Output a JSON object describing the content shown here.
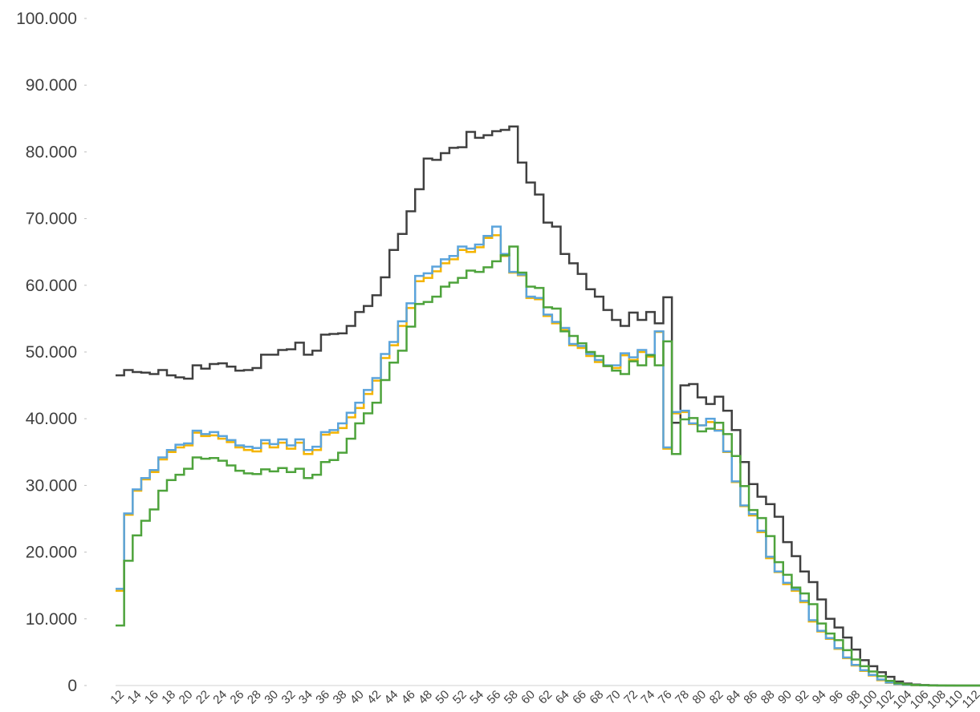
{
  "chart_data": {
    "type": "line",
    "step": true,
    "title": "",
    "xlabel": "",
    "ylabel": "",
    "ylim": [
      0,
      100000
    ],
    "yticks": [
      {
        "value": 0,
        "label": "0"
      },
      {
        "value": 10000,
        "label": "10.000"
      },
      {
        "value": 20000,
        "label": "20.000"
      },
      {
        "value": 30000,
        "label": "30.000"
      },
      {
        "value": 40000,
        "label": "40.000"
      },
      {
        "value": 50000,
        "label": "50.000"
      },
      {
        "value": 60000,
        "label": "60.000"
      },
      {
        "value": 70000,
        "label": "70.000"
      },
      {
        "value": 80000,
        "label": "80.000"
      },
      {
        "value": 90000,
        "label": "90.000"
      },
      {
        "value": 100000,
        "label": "100.000"
      }
    ],
    "xtick_labels": [
      "12",
      "14",
      "16",
      "18",
      "20",
      "22",
      "24",
      "26",
      "28",
      "30",
      "32",
      "34",
      "36",
      "38",
      "40",
      "42",
      "44",
      "46",
      "48",
      "50",
      "52",
      "54",
      "56",
      "58",
      "60",
      "62",
      "64",
      "66",
      "68",
      "70",
      "72",
      "74",
      "76",
      "78",
      "80",
      "82",
      "84",
      "86",
      "88",
      "90",
      "92",
      "94",
      "96",
      "98",
      "100",
      "102",
      "104",
      "106",
      "108",
      "110",
      "112"
    ],
    "grid": false,
    "legend": "none",
    "x": [
      12,
      13,
      14,
      15,
      16,
      17,
      18,
      19,
      20,
      21,
      22,
      23,
      24,
      25,
      26,
      27,
      28,
      29,
      30,
      31,
      32,
      33,
      34,
      35,
      36,
      37,
      38,
      39,
      40,
      41,
      42,
      43,
      44,
      45,
      46,
      47,
      48,
      49,
      50,
      51,
      52,
      53,
      54,
      55,
      56,
      57,
      58,
      59,
      60,
      61,
      62,
      63,
      64,
      65,
      66,
      67,
      68,
      69,
      70,
      71,
      72,
      73,
      74,
      75,
      76,
      77,
      78,
      79,
      80,
      81,
      82,
      83,
      84,
      85,
      86,
      87,
      88,
      89,
      90,
      91,
      92,
      93,
      94,
      95,
      96,
      97,
      98,
      99,
      100,
      101,
      102,
      103,
      104,
      105,
      106,
      107,
      108,
      109,
      110,
      111,
      112
    ],
    "series": [
      {
        "color": "#404040",
        "values": [
          46500,
          47300,
          47000,
          46900,
          46700,
          47300,
          46500,
          46200,
          46000,
          48000,
          47500,
          48200,
          48300,
          47800,
          47200,
          47300,
          47600,
          49600,
          49600,
          50300,
          50400,
          51400,
          49600,
          50200,
          52600,
          52700,
          52800,
          53900,
          56000,
          56900,
          58500,
          61200,
          65300,
          67700,
          71100,
          74400,
          79000,
          78800,
          79800,
          80600,
          80700,
          83000,
          82100,
          82500,
          83100,
          83300,
          83800,
          78400,
          75400,
          73600,
          69400,
          68800,
          64700,
          63300,
          61700,
          59400,
          58300,
          56300,
          54800,
          53900,
          55900,
          54800,
          56000,
          54300,
          58200,
          39400,
          45000,
          45200,
          43200,
          42200,
          43300,
          41200,
          38300,
          33500,
          30200,
          28300,
          27200,
          25300,
          21500,
          19400,
          17100,
          15500,
          12900,
          10000,
          8700,
          7200,
          5400,
          3800,
          2900,
          2000,
          1300,
          600,
          300,
          150,
          80,
          40,
          20,
          10,
          5,
          2,
          0
        ]
      },
      {
        "color": "#f4b400",
        "values": [
          14200,
          25600,
          29200,
          30900,
          32000,
          33900,
          35000,
          35700,
          36000,
          37900,
          37400,
          37500,
          37000,
          36500,
          35700,
          35300,
          35100,
          36300,
          35700,
          36400,
          35500,
          36400,
          34700,
          35300,
          37600,
          37900,
          38600,
          40200,
          41600,
          43700,
          45700,
          49100,
          51000,
          53900,
          56600,
          60600,
          61100,
          62100,
          63300,
          63900,
          65300,
          65000,
          65700,
          67100,
          67500,
          64400,
          61900,
          61500,
          58100,
          57900,
          55400,
          54300,
          53300,
          51000,
          50600,
          49400,
          48500,
          47900,
          47600,
          49500,
          48800,
          50000,
          49300,
          53000,
          35500,
          40800,
          41000,
          39200,
          39000,
          39500,
          38300,
          35000,
          30500,
          26900,
          25500,
          23000,
          19100,
          17000,
          15200,
          14200,
          12500,
          9600,
          8100,
          7000,
          5500,
          4100,
          3000,
          2200,
          1500,
          800,
          400,
          200,
          100,
          50,
          25,
          12,
          6,
          3,
          1,
          0,
          0
        ]
      },
      {
        "color": "#5ba4dc",
        "values": [
          14500,
          25800,
          29400,
          31100,
          32300,
          34200,
          35300,
          36100,
          36300,
          38200,
          37700,
          38000,
          37400,
          36800,
          36000,
          35800,
          35600,
          36800,
          36200,
          36900,
          36000,
          36900,
          35300,
          35800,
          38000,
          38300,
          39300,
          40900,
          42400,
          44300,
          46100,
          49700,
          51500,
          54600,
          57300,
          61400,
          61800,
          62800,
          63900,
          64400,
          65800,
          65500,
          66100,
          67400,
          68800,
          64700,
          62000,
          61600,
          58300,
          58100,
          55600,
          54500,
          53600,
          51200,
          50900,
          49700,
          48800,
          48000,
          48000,
          49800,
          49200,
          50300,
          49600,
          53100,
          35700,
          41000,
          41200,
          39300,
          39000,
          40000,
          38200,
          35100,
          30600,
          27000,
          25700,
          23200,
          19300,
          17100,
          15400,
          14400,
          12700,
          9800,
          8200,
          7100,
          5600,
          4200,
          3100,
          2300,
          1600,
          900,
          450,
          220,
          110,
          55,
          28,
          14,
          7,
          3,
          1,
          0,
          0
        ]
      },
      {
        "color": "#4ea33c",
        "values": [
          9000,
          18700,
          22500,
          24700,
          26400,
          29200,
          30800,
          31600,
          32500,
          34200,
          34000,
          34100,
          33700,
          33000,
          32200,
          31800,
          31700,
          32400,
          32100,
          32600,
          32000,
          32500,
          31100,
          31600,
          33500,
          33800,
          34900,
          37000,
          39300,
          40800,
          42400,
          45800,
          48400,
          50200,
          53800,
          57200,
          57500,
          58300,
          59800,
          60400,
          61100,
          62200,
          62000,
          62700,
          63600,
          64500,
          65800,
          61900,
          59800,
          59600,
          56700,
          56500,
          53100,
          52400,
          51300,
          50000,
          49400,
          47900,
          47200,
          46700,
          48600,
          48000,
          49500,
          48000,
          51600,
          34700,
          39900,
          40100,
          38100,
          38500,
          39400,
          37700,
          34400,
          29900,
          26300,
          25100,
          22400,
          18500,
          16600,
          14700,
          13800,
          12200,
          9300,
          7800,
          6800,
          5300,
          3900,
          2900,
          2100,
          1400,
          700,
          350,
          180,
          90,
          45,
          22,
          11,
          5,
          2,
          1,
          0
        ]
      }
    ]
  }
}
